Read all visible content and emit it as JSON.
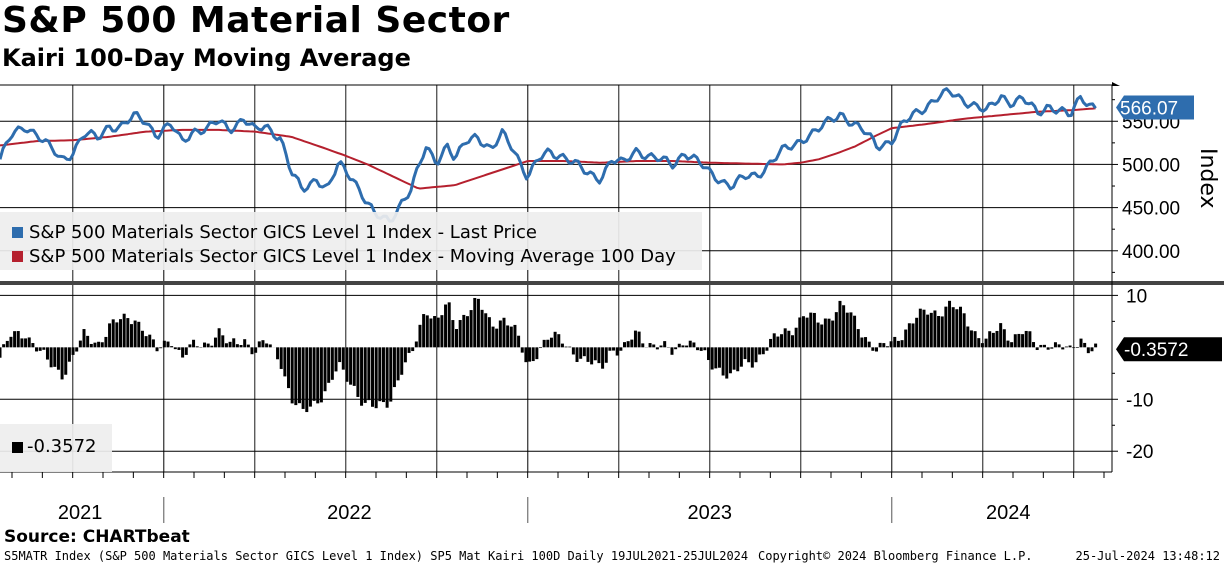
{
  "header": {
    "title": "S&P 500 Material Sector",
    "subtitle": "Kairi 100-Day Moving Average"
  },
  "footer": {
    "source": "Source: CHARTbeat",
    "description": "S5MATR Index (S&P 500 Materials Sector GICS Level 1 Index) SP5 Mat Kairi 100D  Daily 19JUL2021-25JUL2024",
    "copyright": "Copyright© 2024 Bloomberg Finance L.P.",
    "timestamp": "25-Jul-2024 13:48:12"
  },
  "colors": {
    "last_price": "#2E6DAE",
    "moving_average": "#B5202E",
    "kairi": "#000000"
  },
  "chart_data": [
    {
      "type": "line",
      "panel": "upper",
      "axis_title": "Index",
      "ylim": [
        365,
        592
      ],
      "yticks": [
        400,
        450,
        500,
        550
      ],
      "ytick_labels": [
        "400.00",
        "450.00",
        "500.00",
        "550.00"
      ],
      "x_categories": [
        "2021",
        "2022",
        "2023",
        "2024"
      ],
      "x_range": [
        "19JUL2021",
        "25JUL2024"
      ],
      "last_value_label": "566.07",
      "legend": [
        "S&P 500 Materials Sector GICS Level 1 Index - Last Price",
        "S&P 500 Materials Sector GICS Level 1 Index - Moving Average 100 Day"
      ],
      "series": [
        {
          "name": "S&P 500 Materials Sector GICS Level 1 Index - Last Price",
          "x": [
            2021.55,
            2021.58,
            2021.62,
            2021.65,
            2021.68,
            2021.72,
            2021.75,
            2021.78,
            2021.82,
            2021.85,
            2021.88,
            2021.92,
            2021.95,
            2021.98,
            2022.02,
            2022.05,
            2022.08,
            2022.12,
            2022.15,
            2022.18,
            2022.22,
            2022.25,
            2022.28,
            2022.32,
            2022.35,
            2022.38,
            2022.42,
            2022.45,
            2022.48,
            2022.52,
            2022.55,
            2022.58,
            2022.62,
            2022.65,
            2022.68,
            2022.72,
            2022.75,
            2022.78,
            2022.8,
            2022.83,
            2022.86,
            2022.9,
            2022.93,
            2022.96,
            2023.0,
            2023.03,
            2023.06,
            2023.1,
            2023.13,
            2023.16,
            2023.2,
            2023.23,
            2023.26,
            2023.3,
            2023.33,
            2023.36,
            2023.4,
            2023.43,
            2023.46,
            2023.5,
            2023.53,
            2023.56,
            2023.6,
            2023.63,
            2023.66,
            2023.7,
            2023.73,
            2023.76,
            2023.8,
            2023.83,
            2023.86,
            2023.9,
            2023.93,
            2023.96,
            2024.0,
            2024.03,
            2024.06,
            2024.1,
            2024.13,
            2024.16,
            2024.2,
            2024.23,
            2024.26,
            2024.3,
            2024.33,
            2024.36,
            2024.4,
            2024.43,
            2024.46,
            2024.49,
            2024.52,
            2024.54,
            2024.56
          ],
          "values": [
            506,
            532,
            545,
            536,
            522,
            505,
            515,
            535,
            530,
            546,
            543,
            555,
            551,
            535,
            545,
            526,
            540,
            540,
            550,
            542,
            553,
            538,
            545,
            532,
            490,
            470,
            485,
            470,
            500,
            485,
            462,
            440,
            435,
            455,
            470,
            520,
            505,
            522,
            503,
            527,
            535,
            515,
            535,
            520,
            485,
            505,
            515,
            510,
            500,
            490,
            485,
            505,
            500,
            518,
            510,
            505,
            500,
            515,
            505,
            490,
            483,
            475,
            485,
            488,
            500,
            515,
            522,
            532,
            540,
            550,
            560,
            545,
            535,
            522,
            528,
            545,
            558,
            570,
            578,
            583,
            575,
            568,
            560,
            580,
            572,
            575,
            560,
            569,
            562,
            555,
            580,
            572,
            566
          ]
        },
        {
          "name": "S&P 500 Materials Sector GICS Level 1 Index - Moving Average 100 Day",
          "x": [
            2021.55,
            2021.65,
            2021.75,
            2021.85,
            2021.95,
            2022.05,
            2022.15,
            2022.25,
            2022.35,
            2022.42,
            2022.5,
            2022.56,
            2022.62,
            2022.7,
            2022.8,
            2022.9,
            2023.0,
            2023.1,
            2023.2,
            2023.3,
            2023.4,
            2023.5,
            2023.6,
            2023.7,
            2023.75,
            2023.8,
            2023.85,
            2023.9,
            2023.95,
            2024.0,
            2024.1,
            2024.2,
            2024.3,
            2024.4,
            2024.5,
            2024.56
          ],
          "values": [
            522,
            527,
            528,
            532,
            538,
            540,
            540,
            538,
            532,
            522,
            510,
            500,
            488,
            472,
            476,
            490,
            504,
            504,
            502,
            504,
            504,
            502,
            501,
            500,
            502,
            506,
            513,
            521,
            532,
            542,
            547,
            553,
            557,
            561,
            563,
            565
          ]
        }
      ]
    },
    {
      "type": "bar",
      "panel": "lower",
      "title": "Kairi",
      "ylim": [
        -24,
        12
      ],
      "yticks": [
        10,
        -10,
        -20
      ],
      "ytick_labels": [
        "10",
        "-10",
        "-20"
      ],
      "last_value_label": "-0.3572",
      "legend": [
        "-0.3572"
      ],
      "series": [
        {
          "name": "Kairi 100 Day",
          "x": [
            2021.55,
            2021.58,
            2021.62,
            2021.65,
            2021.68,
            2021.72,
            2021.75,
            2021.78,
            2021.82,
            2021.85,
            2021.88,
            2021.92,
            2021.95,
            2021.98,
            2022.02,
            2022.05,
            2022.08,
            2022.12,
            2022.15,
            2022.18,
            2022.22,
            2022.25,
            2022.28,
            2022.32,
            2022.35,
            2022.38,
            2022.42,
            2022.45,
            2022.48,
            2022.52,
            2022.55,
            2022.58,
            2022.62,
            2022.65,
            2022.68,
            2022.72,
            2022.75,
            2022.78,
            2022.8,
            2022.83,
            2022.86,
            2022.9,
            2022.93,
            2022.96,
            2023.0,
            2023.03,
            2023.06,
            2023.1,
            2023.13,
            2023.16,
            2023.2,
            2023.23,
            2023.26,
            2023.3,
            2023.33,
            2023.36,
            2023.4,
            2023.43,
            2023.46,
            2023.5,
            2023.53,
            2023.56,
            2023.6,
            2023.63,
            2023.66,
            2023.7,
            2023.73,
            2023.76,
            2023.8,
            2023.83,
            2023.86,
            2023.9,
            2023.93,
            2023.96,
            2024.0,
            2024.03,
            2024.06,
            2024.1,
            2024.13,
            2024.16,
            2024.2,
            2024.23,
            2024.26,
            2024.3,
            2024.33,
            2024.36,
            2024.4,
            2024.43,
            2024.46,
            2024.49,
            2024.52,
            2024.54,
            2024.56
          ],
          "values": [
            -2,
            2,
            3,
            0,
            -3,
            -5,
            -2,
            2,
            1,
            4,
            5,
            6,
            3,
            -1,
            2,
            -2,
            0,
            1,
            3,
            0,
            2,
            -1,
            1,
            -2,
            -10,
            -13,
            -10,
            -8,
            -4,
            -7,
            -11,
            -12,
            -10,
            -5,
            -2,
            8,
            5,
            8,
            4,
            7,
            9,
            4,
            6,
            4,
            -4,
            0,
            2,
            1,
            -1,
            -3,
            -4,
            0,
            -1,
            3,
            1,
            0,
            -1,
            2,
            0,
            -3,
            -4,
            -6,
            -3,
            -2,
            0,
            3,
            4,
            6,
            5,
            6,
            8,
            5,
            2,
            -1,
            1,
            3,
            5,
            7,
            7,
            8,
            6,
            3,
            1,
            4,
            2,
            3,
            0,
            1,
            0,
            -1,
            2,
            0,
            -0.36
          ]
        }
      ]
    }
  ]
}
